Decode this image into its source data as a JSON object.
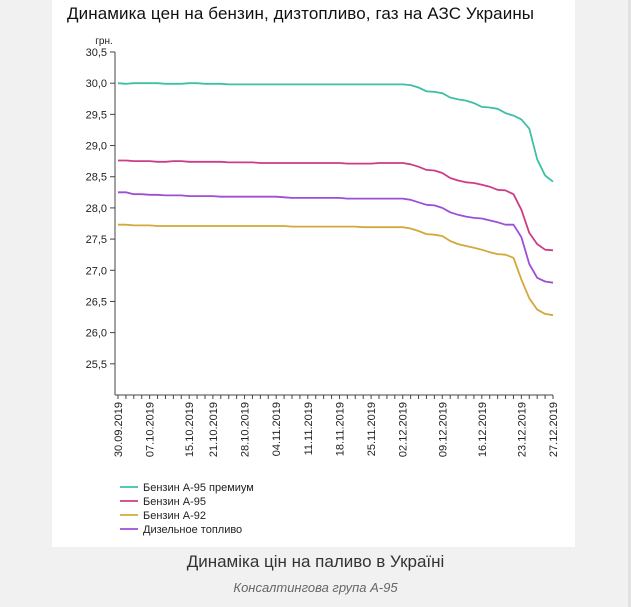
{
  "chart_data": {
    "type": "line",
    "title": "Динамика цен на бензин, дизтопливо, газ на АЗС Украины",
    "ylabel": "грн.",
    "xlabel": "",
    "ylim": [
      25.0,
      30.5
    ],
    "yticks": [
      "30,5",
      "30,0",
      "29,5",
      "29,0",
      "28,5",
      "28,0",
      "27,5",
      "27,0",
      "26,5",
      "26,0",
      "25,5"
    ],
    "ytick_values": [
      30.5,
      30.0,
      29.5,
      29.0,
      28.5,
      28.0,
      27.5,
      27.0,
      26.5,
      26.0,
      25.5
    ],
    "x_dates": [
      "30.09.2019",
      "01.10.2019",
      "03.10.2019",
      "04.10.2019",
      "07.10.2019",
      "08.10.2019",
      "10.10.2019",
      "11.10.2019",
      "14.10.2019",
      "15.10.2019",
      "17.10.2019",
      "18.10.2019",
      "21.10.2019",
      "22.10.2019",
      "24.10.2019",
      "25.10.2019",
      "28.10.2019",
      "29.10.2019",
      "31.10.2019",
      "01.11.2019",
      "04.11.2019",
      "05.11.2019",
      "07.11.2019",
      "08.11.2019",
      "11.11.2019",
      "12.11.2019",
      "14.11.2019",
      "15.11.2019",
      "18.11.2019",
      "19.11.2019",
      "21.11.2019",
      "22.11.2019",
      "25.11.2019",
      "26.11.2019",
      "28.11.2019",
      "29.11.2019",
      "02.12.2019",
      "03.12.2019",
      "04.12.2019",
      "05.12.2019",
      "06.12.2019",
      "09.12.2019",
      "10.12.2019",
      "11.12.2019",
      "12.12.2019",
      "13.12.2019",
      "16.12.2019",
      "17.12.2019",
      "18.12.2019",
      "19.12.2019",
      "20.12.2019",
      "23.12.2019",
      "24.12.2019",
      "25.12.2019",
      "26.12.2019",
      "27.12.2019"
    ],
    "xtick_labels": [
      "30.09.2019",
      "07.10.2019",
      "15.10.2019",
      "21.10.2019",
      "28.10.2019",
      "04.11.2019",
      "11.11.2019",
      "18.11.2019",
      "25.11.2019",
      "02.12.2019",
      "09.12.2019",
      "16.12.2019",
      "23.12.2019",
      "27.12.2019"
    ],
    "series": [
      {
        "name": "Бензин А-95 премиум",
        "color": "#3dbfa8",
        "values": [
          30.0,
          29.99,
          30.0,
          30.0,
          30.0,
          30.0,
          29.99,
          29.99,
          29.99,
          30.0,
          30.0,
          29.99,
          29.99,
          29.99,
          29.98,
          29.98,
          29.98,
          29.98,
          29.98,
          29.98,
          29.98,
          29.98,
          29.98,
          29.98,
          29.98,
          29.98,
          29.98,
          29.98,
          29.98,
          29.98,
          29.98,
          29.98,
          29.98,
          29.98,
          29.98,
          29.98,
          29.98,
          29.97,
          29.93,
          29.87,
          29.86,
          29.84,
          29.77,
          29.74,
          29.72,
          29.68,
          29.62,
          29.61,
          29.59,
          29.52,
          29.48,
          29.42,
          29.27,
          28.78,
          28.52,
          28.42
        ]
      },
      {
        "name": "Бензин А-95",
        "color": "#cc3d88",
        "values": [
          28.76,
          28.76,
          28.75,
          28.75,
          28.75,
          28.74,
          28.74,
          28.75,
          28.75,
          28.74,
          28.74,
          28.74,
          28.74,
          28.74,
          28.73,
          28.73,
          28.73,
          28.73,
          28.72,
          28.72,
          28.72,
          28.72,
          28.72,
          28.72,
          28.72,
          28.72,
          28.72,
          28.72,
          28.72,
          28.71,
          28.71,
          28.71,
          28.71,
          28.72,
          28.72,
          28.72,
          28.72,
          28.7,
          28.66,
          28.61,
          28.6,
          28.56,
          28.48,
          28.44,
          28.41,
          28.4,
          28.37,
          28.34,
          28.29,
          28.28,
          28.22,
          27.97,
          27.6,
          27.42,
          27.33,
          27.32
        ]
      },
      {
        "name": "Бензин А-92",
        "color": "#d4a83a",
        "values": [
          27.73,
          27.73,
          27.72,
          27.72,
          27.72,
          27.71,
          27.71,
          27.71,
          27.71,
          27.71,
          27.71,
          27.71,
          27.71,
          27.71,
          27.71,
          27.71,
          27.71,
          27.71,
          27.71,
          27.71,
          27.71,
          27.71,
          27.7,
          27.7,
          27.7,
          27.7,
          27.7,
          27.7,
          27.7,
          27.7,
          27.7,
          27.69,
          27.69,
          27.69,
          27.69,
          27.69,
          27.69,
          27.67,
          27.63,
          27.58,
          27.57,
          27.55,
          27.47,
          27.42,
          27.39,
          27.36,
          27.33,
          27.29,
          27.26,
          27.25,
          27.2,
          26.85,
          26.55,
          26.37,
          26.3,
          26.28
        ]
      },
      {
        "name": "Дизельное топливо",
        "color": "#9b4fd6",
        "values": [
          28.25,
          28.25,
          28.22,
          28.22,
          28.21,
          28.21,
          28.2,
          28.2,
          28.2,
          28.19,
          28.19,
          28.19,
          28.19,
          28.18,
          28.18,
          28.18,
          28.18,
          28.18,
          28.18,
          28.18,
          28.18,
          28.17,
          28.16,
          28.16,
          28.16,
          28.16,
          28.16,
          28.16,
          28.16,
          28.15,
          28.15,
          28.15,
          28.15,
          28.15,
          28.15,
          28.15,
          28.15,
          28.13,
          28.09,
          28.05,
          28.04,
          28.0,
          27.93,
          27.89,
          27.86,
          27.84,
          27.83,
          27.8,
          27.77,
          27.73,
          27.73,
          27.53,
          27.1,
          26.88,
          26.82,
          26.8
        ]
      }
    ],
    "legend_position": "bottom-left",
    "grid": false
  },
  "caption": "Динаміка цін на паливо в Україні",
  "source": "Консалтингова група А-95"
}
